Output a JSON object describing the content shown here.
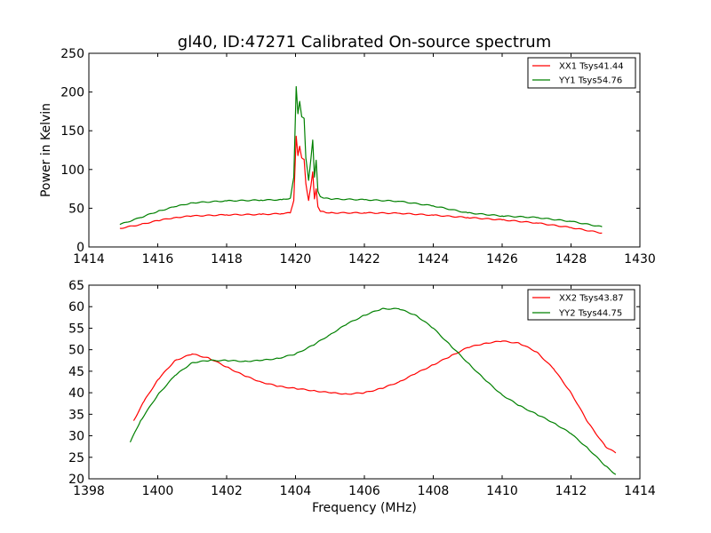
{
  "figure": {
    "title": "gl40, ID:47271 Calibrated On-source spectrum"
  },
  "colors": {
    "xx": "#ff0000",
    "yy": "#008000",
    "axes": "#000000",
    "background": "#ffffff"
  },
  "chart_data": [
    {
      "type": "line",
      "title": "gl40, ID:47271 Calibrated On-source spectrum",
      "xlabel": "",
      "ylabel": "Power in Kelvin",
      "xlim": [
        1414,
        1430
      ],
      "ylim": [
        0,
        250
      ],
      "xticks": [
        "1414",
        "1416",
        "1418",
        "1420",
        "1422",
        "1424",
        "1426",
        "1428",
        "1430"
      ],
      "yticks": [
        "0",
        "50",
        "100",
        "150",
        "200",
        "250"
      ],
      "grid": false,
      "legend": "top-right",
      "series": [
        {
          "name": "XX1 Tsys41.44",
          "color": "#ff0000",
          "x": [
            1414.9,
            1415.5,
            1416,
            1416.5,
            1417,
            1418,
            1419,
            1419.6,
            1419.85,
            1419.95,
            1420.02,
            1420.07,
            1420.12,
            1420.18,
            1420.25,
            1420.3,
            1420.38,
            1420.45,
            1420.5,
            1420.55,
            1420.6,
            1420.65,
            1420.72,
            1420.85,
            1421,
            1422,
            1423,
            1424,
            1425,
            1426,
            1427,
            1428,
            1428.9
          ],
          "y": [
            24,
            29,
            34,
            38,
            40,
            41.5,
            42,
            43,
            44,
            60,
            143,
            118,
            130,
            115,
            113,
            82,
            60,
            80,
            97,
            62,
            75,
            52,
            46,
            45,
            44,
            44,
            43.5,
            41,
            38,
            35,
            31,
            25,
            18
          ]
        },
        {
          "name": "YY1 Tsys54.76",
          "color": "#008000",
          "x": [
            1414.9,
            1415.5,
            1416,
            1416.5,
            1417,
            1418,
            1419,
            1419.6,
            1419.85,
            1419.95,
            1420.02,
            1420.07,
            1420.12,
            1420.18,
            1420.25,
            1420.3,
            1420.38,
            1420.45,
            1420.5,
            1420.55,
            1420.6,
            1420.65,
            1420.72,
            1420.85,
            1421,
            1422,
            1423,
            1424,
            1425,
            1426,
            1427,
            1428,
            1428.9
          ],
          "y": [
            29,
            38,
            46,
            52,
            57,
            59.5,
            60.5,
            61,
            63,
            90,
            207,
            172,
            188,
            168,
            166,
            115,
            86,
            115,
            138,
            90,
            112,
            72,
            65,
            63,
            62,
            61,
            59,
            53,
            44,
            40,
            38,
            33,
            26
          ]
        }
      ]
    },
    {
      "type": "line",
      "title": "",
      "xlabel": "Frequency (MHz)",
      "ylabel": "",
      "xlim": [
        1398,
        1414
      ],
      "ylim": [
        20,
        65
      ],
      "xticks": [
        "1398",
        "1400",
        "1402",
        "1404",
        "1406",
        "1408",
        "1410",
        "1412",
        "1414"
      ],
      "yticks": [
        "20",
        "25",
        "30",
        "35",
        "40",
        "45",
        "50",
        "55",
        "60",
        "65"
      ],
      "grid": false,
      "legend": "top-right",
      "series": [
        {
          "name": "XX2 Tsys43.87",
          "color": "#ff0000",
          "x": [
            1399.3,
            1399.6,
            1400,
            1400.5,
            1401,
            1401.5,
            1402,
            1402.5,
            1403,
            1403.5,
            1404,
            1404.5,
            1405,
            1405.5,
            1406,
            1406.5,
            1407,
            1407.5,
            1408,
            1408.5,
            1409,
            1409.5,
            1410,
            1410.5,
            1411,
            1411.5,
            1412,
            1412.5,
            1413,
            1413.3
          ],
          "y": [
            33.5,
            38,
            43,
            47.5,
            49,
            48,
            46,
            44,
            42.5,
            41.5,
            41,
            40.5,
            40,
            39.7,
            40,
            41,
            42.5,
            44.5,
            46.5,
            48.5,
            50.5,
            51.5,
            52,
            51.5,
            49.5,
            45.5,
            40,
            33,
            27.5,
            26
          ]
        },
        {
          "name": "YY2 Tsys44.75",
          "color": "#008000",
          "x": [
            1399.2,
            1399.5,
            1400,
            1400.5,
            1401,
            1401.5,
            1402,
            1402.5,
            1403,
            1403.5,
            1404,
            1404.5,
            1405,
            1405.5,
            1406,
            1406.5,
            1407,
            1407.5,
            1408,
            1408.5,
            1409,
            1409.5,
            1410,
            1410.5,
            1411,
            1411.5,
            1412,
            1412.5,
            1413,
            1413.3
          ],
          "y": [
            28.5,
            33.5,
            39.5,
            44,
            47,
            47.5,
            47.5,
            47.3,
            47.5,
            48,
            49,
            51,
            53.5,
            56,
            58,
            59.5,
            59.5,
            58,
            55,
            51,
            47,
            43,
            39.5,
            37,
            35,
            33,
            30.5,
            27,
            23,
            21
          ]
        }
      ]
    }
  ]
}
